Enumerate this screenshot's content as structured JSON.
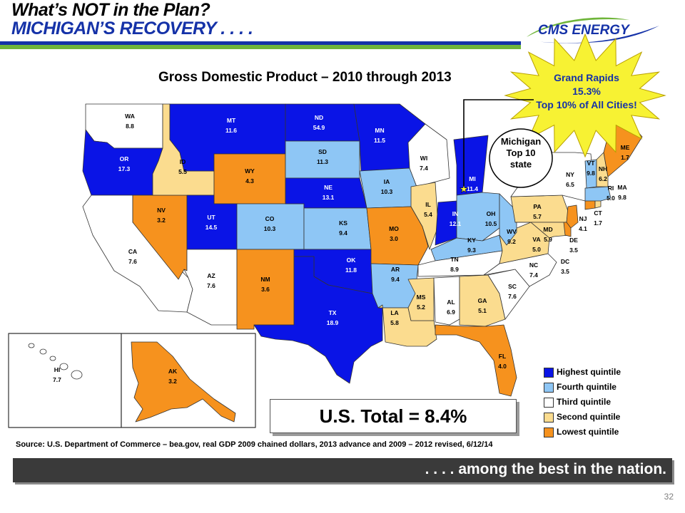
{
  "header": {
    "title_line1": "What’s NOT in the Plan?",
    "title_line2": "MICHIGAN’S RECOVERY . . . .",
    "logo_text": "CMS ENERGY"
  },
  "colors": {
    "highest": "#0a14e6",
    "fourth": "#8ec6f5",
    "third": "#ffffff",
    "second": "#fbdc8f",
    "lowest": "#f6921e",
    "starburst": "#f7f233",
    "title_blue": "#1532a8",
    "rule_green": "#6fb53a",
    "banner": "#3a3a3a"
  },
  "map": {
    "title": "Gross Domestic Product – 2010 through 2013",
    "states": [
      {
        "abbr": "WA",
        "value": "8.8",
        "quintile": "third"
      },
      {
        "abbr": "OR",
        "value": "17.3",
        "quintile": "highest"
      },
      {
        "abbr": "CA",
        "value": "7.6",
        "quintile": "third"
      },
      {
        "abbr": "NV",
        "value": "3.2",
        "quintile": "lowest"
      },
      {
        "abbr": "ID",
        "value": "5.5",
        "quintile": "second"
      },
      {
        "abbr": "MT",
        "value": "11.6",
        "quintile": "highest"
      },
      {
        "abbr": "WY",
        "value": "4.3",
        "quintile": "lowest"
      },
      {
        "abbr": "UT",
        "value": "14.5",
        "quintile": "highest"
      },
      {
        "abbr": "AZ",
        "value": "7.6",
        "quintile": "third"
      },
      {
        "abbr": "CO",
        "value": "10.3",
        "quintile": "fourth"
      },
      {
        "abbr": "NM",
        "value": "3.6",
        "quintile": "lowest"
      },
      {
        "abbr": "ND",
        "value": "54.9",
        "quintile": "highest"
      },
      {
        "abbr": "SD",
        "value": "11.3",
        "quintile": "fourth"
      },
      {
        "abbr": "NE",
        "value": "13.1",
        "quintile": "highest"
      },
      {
        "abbr": "KS",
        "value": "9.4",
        "quintile": "fourth"
      },
      {
        "abbr": "OK",
        "value": "11.8",
        "quintile": "highest"
      },
      {
        "abbr": "TX",
        "value": "18.9",
        "quintile": "highest"
      },
      {
        "abbr": "MN",
        "value": "11.5",
        "quintile": "highest"
      },
      {
        "abbr": "IA",
        "value": "10.3",
        "quintile": "fourth"
      },
      {
        "abbr": "MO",
        "value": "3.0",
        "quintile": "lowest"
      },
      {
        "abbr": "AR",
        "value": "9.4",
        "quintile": "fourth"
      },
      {
        "abbr": "LA",
        "value": "5.8",
        "quintile": "second"
      },
      {
        "abbr": "WI",
        "value": "7.4",
        "quintile": "third"
      },
      {
        "abbr": "IL",
        "value": "5.4",
        "quintile": "second"
      },
      {
        "abbr": "MI",
        "value": "11.4",
        "quintile": "highest"
      },
      {
        "abbr": "IN",
        "value": "12.1",
        "quintile": "highest"
      },
      {
        "abbr": "OH",
        "value": "10.5",
        "quintile": "fourth"
      },
      {
        "abbr": "KY",
        "value": "9.3",
        "quintile": "fourth"
      },
      {
        "abbr": "TN",
        "value": "8.9",
        "quintile": "third"
      },
      {
        "abbr": "MS",
        "value": "5.2",
        "quintile": "second"
      },
      {
        "abbr": "AL",
        "value": "6.9",
        "quintile": "third"
      },
      {
        "abbr": "GA",
        "value": "5.1",
        "quintile": "second"
      },
      {
        "abbr": "FL",
        "value": "4.0",
        "quintile": "lowest"
      },
      {
        "abbr": "SC",
        "value": "7.6",
        "quintile": "third"
      },
      {
        "abbr": "NC",
        "value": "7.4",
        "quintile": "third"
      },
      {
        "abbr": "VA",
        "value": "5.0",
        "quintile": "second"
      },
      {
        "abbr": "WV",
        "value": "9.2",
        "quintile": "fourth"
      },
      {
        "abbr": "PA",
        "value": "5.7",
        "quintile": "second"
      },
      {
        "abbr": "NY",
        "value": "6.5",
        "quintile": "third"
      },
      {
        "abbr": "MD",
        "value": "5.9",
        "quintile": "second"
      },
      {
        "abbr": "DE",
        "value": "3.5",
        "quintile": "lowest"
      },
      {
        "abbr": "DC",
        "value": "3.5",
        "quintile": "lowest"
      },
      {
        "abbr": "NJ",
        "value": "4.1",
        "quintile": "lowest"
      },
      {
        "abbr": "CT",
        "value": "1.7",
        "quintile": "lowest"
      },
      {
        "abbr": "RI",
        "value": "5.0",
        "quintile": "second"
      },
      {
        "abbr": "MA",
        "value": "9.8",
        "quintile": "fourth"
      },
      {
        "abbr": "VT",
        "value": "9.8",
        "quintile": "fourth"
      },
      {
        "abbr": "NH",
        "value": "6.2",
        "quintile": "second"
      },
      {
        "abbr": "ME",
        "value": "1.7",
        "quintile": "lowest"
      },
      {
        "abbr": "HI",
        "value": "7.7",
        "quintile": "third"
      },
      {
        "abbr": "AK",
        "value": "3.2",
        "quintile": "lowest"
      }
    ]
  },
  "legend": [
    {
      "label": "Highest quintile",
      "key": "highest"
    },
    {
      "label": "Fourth quintile",
      "key": "fourth"
    },
    {
      "label": "Third quintile",
      "key": "third"
    },
    {
      "label": "Second quintile",
      "key": "second"
    },
    {
      "label": "Lowest  quintile",
      "key": "lowest"
    }
  ],
  "callouts": {
    "starburst_line1": "Grand Rapids",
    "starburst_line2": "15.3%",
    "starburst_line3": "Top 10% of All Cities!",
    "michigan_line1": "Michigan",
    "michigan_line2": "Top 10",
    "michigan_line3": "state"
  },
  "total": "U.S. Total = 8.4%",
  "source": "Source:  U.S. Department of Commerce – bea.gov, real GDP 2009 chained dollars, 2013 advance and 2009 – 2012 revised, 6/12/14",
  "banner_text": ". . . . among the best in the nation.",
  "page_number": "32"
}
